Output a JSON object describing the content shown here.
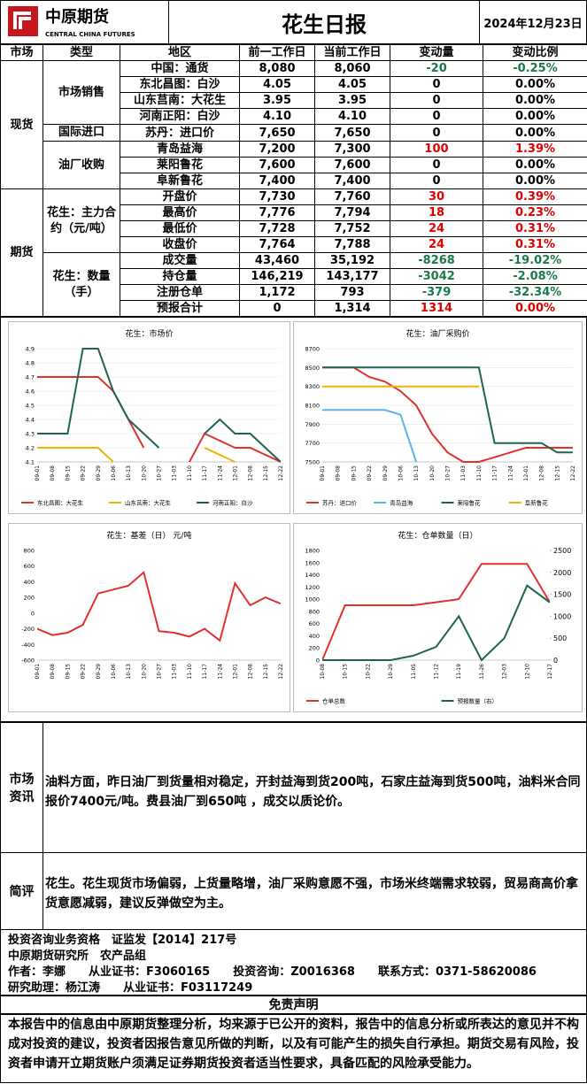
{
  "header": {
    "logo_cn": "中原期货",
    "logo_en": "CENTRAL CHINA FUTURES",
    "title": "花生日报",
    "date": "2024年12月23日"
  },
  "table": {
    "columns": [
      "市场",
      "类型",
      "地区",
      "前一工作日",
      "当前工作日",
      "变动量",
      "变动比例"
    ],
    "markets": [
      {
        "name": "现货",
        "types": [
          {
            "name": "市场销售",
            "rows": [
              [
                "中国：通货",
                "8,080",
                "8,060",
                "-20",
                "-0.25%"
              ],
              [
                "东北昌图：白沙",
                "4.05",
                "4.05",
                "0",
                "0.00%"
              ],
              [
                "山东莒南：大花生",
                "3.95",
                "3.95",
                "0",
                "0.00%"
              ],
              [
                "河南正阳：白沙",
                "4.10",
                "4.10",
                "0",
                "0.00%"
              ]
            ]
          },
          {
            "name": "国际进口",
            "rows": [
              [
                "苏丹：进口价",
                "7,650",
                "7,650",
                "0",
                "0.00%"
              ]
            ]
          },
          {
            "name": "油厂收购",
            "rows": [
              [
                "青岛益海",
                "7,200",
                "7,300",
                "100",
                "1.39%"
              ],
              [
                "莱阳鲁花",
                "7,600",
                "7,600",
                "0",
                "0.00%"
              ],
              [
                "阜新鲁花",
                "7,400",
                "7,400",
                "0",
                "0.00%"
              ]
            ]
          }
        ]
      },
      {
        "name": "期货",
        "types": [
          {
            "name": "花生：主力合约（元/吨）",
            "rows": [
              [
                "开盘价",
                "7,730",
                "7,760",
                "30",
                "0.39%"
              ],
              [
                "最高价",
                "7,776",
                "7,794",
                "18",
                "0.23%"
              ],
              [
                "最低价",
                "7,728",
                "7,752",
                "24",
                "0.31%"
              ],
              [
                "收盘价",
                "7,764",
                "7,788",
                "24",
                "0.31%"
              ]
            ]
          },
          {
            "name": "花生：数量（手）",
            "rows": [
              [
                "成交量",
                "43,460",
                "35,192",
                "-8268",
                "-19.02%"
              ],
              [
                "持仓量",
                "146,219",
                "143,177",
                "-3042",
                "-2.08%"
              ],
              [
                "注册仓单",
                "1,172",
                "793",
                "-379",
                "-32.34%"
              ],
              [
                "预报合计",
                "0",
                "1,314",
                "1314",
                "0.00%"
              ]
            ]
          }
        ]
      }
    ]
  },
  "charts": [
    {
      "type": "line",
      "title": "花生：市场价",
      "grid": true,
      "categories": [
        "09-01",
        "09-08",
        "09-15",
        "09-22",
        "09-29",
        "10-06",
        "10-13",
        "10-20",
        "10-27",
        "11-03",
        "11-10",
        "11-17",
        "11-24",
        "12-01",
        "12-08",
        "12-15",
        "12-22"
      ],
      "ylim": [
        4.1,
        4.9
      ],
      "yticks": [
        4.1,
        4.2,
        4.3,
        4.4,
        4.5,
        4.6,
        4.7,
        4.8,
        4.9
      ],
      "series": [
        {
          "name": "东北昌图：大花生",
          "color": "#e03030",
          "values": [
            4.7,
            4.7,
            4.7,
            4.7,
            4.7,
            4.6,
            4.4,
            4.2,
            null,
            null,
            4.1,
            4.3,
            4.25,
            4.2,
            4.2,
            4.15,
            4.1
          ]
        },
        {
          "name": "山东莒南：大花生",
          "color": "#f0b400",
          "values": [
            4.2,
            4.2,
            4.2,
            4.2,
            4.2,
            4.1,
            null,
            null,
            null,
            null,
            null,
            4.2,
            4.15,
            4.1,
            null,
            null,
            null
          ]
        },
        {
          "name": "河南正阳：白沙",
          "color": "#1e6450",
          "values": [
            4.3,
            4.3,
            4.3,
            4.9,
            4.9,
            4.6,
            4.4,
            4.3,
            4.2,
            null,
            null,
            4.3,
            4.4,
            4.3,
            4.3,
            4.2,
            4.1
          ]
        }
      ]
    },
    {
      "type": "line",
      "title": "花生：油厂采购价",
      "grid": true,
      "categories": [
        "09-01",
        "09-08",
        "09-15",
        "09-22",
        "09-29",
        "10-06",
        "10-13",
        "10-20",
        "10-27",
        "11-03",
        "11-10",
        "11-17",
        "11-24",
        "12-01",
        "12-08",
        "12-15",
        "12-22"
      ],
      "ylim": [
        7500,
        8700
      ],
      "yticks": [
        7500,
        7700,
        7900,
        8100,
        8300,
        8500,
        8700
      ],
      "series": [
        {
          "name": "苏丹：进口价",
          "color": "#e03030",
          "values": [
            8500,
            8500,
            8500,
            8400,
            8350,
            8250,
            8100,
            7800,
            7600,
            7500,
            7500,
            7550,
            7600,
            7650,
            7650,
            7650,
            7650
          ]
        },
        {
          "name": "青岛益海",
          "color": "#5ab4e6",
          "values": [
            8050,
            8050,
            8050,
            8050,
            8050,
            8000,
            7500,
            null,
            null,
            null,
            null,
            null,
            null,
            null,
            null,
            null,
            null
          ]
        },
        {
          "name": "莱阳鲁花",
          "color": "#1e6450",
          "values": [
            8500,
            8500,
            8500,
            8500,
            8500,
            8500,
            8500,
            8500,
            8500,
            8500,
            8500,
            7700,
            7700,
            7700,
            7700,
            7600,
            7600
          ]
        },
        {
          "name": "阜新鲁花",
          "color": "#f0b400",
          "values": [
            8300,
            8300,
            8300,
            8300,
            8300,
            8300,
            8300,
            8300,
            8300,
            8300,
            8300,
            null,
            null,
            null,
            null,
            null,
            null
          ]
        }
      ]
    },
    {
      "type": "line",
      "title": "花生：基差（日） 元/吨",
      "grid": false,
      "categories": [
        "09-01",
        "09-08",
        "09-15",
        "09-22",
        "09-29",
        "10-06",
        "10-13",
        "10-20",
        "10-27",
        "11-03",
        "11-10",
        "11-17",
        "11-24",
        "12-01",
        "12-08",
        "12-15",
        "12-22"
      ],
      "ylim": [
        -600,
        800
      ],
      "yticks": [
        -600,
        -400,
        -200,
        0,
        200,
        400,
        600,
        800
      ],
      "series": [
        {
          "color": "#e03030",
          "values": [
            -200,
            -280,
            -250,
            -150,
            250,
            300,
            350,
            520,
            -230,
            -250,
            -300,
            -200,
            -350,
            380,
            100,
            200,
            120
          ]
        }
      ]
    },
    {
      "type": "line",
      "title": "花生：仓单数量（日）",
      "grid": false,
      "categories": [
        "10-08",
        "10-15",
        "10-22",
        "10-29",
        "11-05",
        "11-12",
        "11-19",
        "11-26",
        "12-03",
        "12-10",
        "12-17"
      ],
      "ylim": [
        0,
        1800
      ],
      "yticks": [
        0,
        200,
        400,
        600,
        800,
        1000,
        1200,
        1400,
        1600,
        1800
      ],
      "y2lim": [
        0,
        2500
      ],
      "y2ticks": [
        0,
        500,
        1000,
        1500,
        2000,
        2500
      ],
      "series": [
        {
          "name": "仓单总数",
          "color": "#e03030",
          "values": [
            0,
            900,
            900,
            900,
            900,
            950,
            1000,
            1580,
            1580,
            1580,
            950
          ]
        },
        {
          "name": "预报数量（右）",
          "color": "#1e6450",
          "axis": "y2",
          "values": [
            0,
            0,
            0,
            0,
            100,
            300,
            1000,
            0,
            500,
            1700,
            1314
          ]
        }
      ]
    }
  ],
  "market_info": {
    "label": "市场资讯",
    "text": "油料方面，昨日油厂到货量相对稳定，开封益海到货200吨，石家庄益海到货500吨，油料米合同报价7400元/吨。费县油厂到650吨 ，成交以质论价。"
  },
  "comment": {
    "label": "简评",
    "text": "花生。花生现货市场偏弱，上货量略增，油厂采购意愿不强，市场米终端需求较弱，贸易商高价拿货意愿减弱，建议反弹做空为主。"
  },
  "footer": {
    "lines": [
      [
        "投资咨询业务资格　证监发【2014】217号"
      ],
      [
        "中原期货研究所　农产品组"
      ],
      [
        "作者：李娜",
        "从业证书：F3060165",
        "投资咨询：Z0016368",
        "联系方式：0371-58620086"
      ],
      [
        "研究助理：杨江涛",
        "从业证书：F03117249"
      ]
    ]
  },
  "disclaimer": {
    "title": "免责声明",
    "text": "本报告中的信息由中原期货整理分析，均来源于已公开的资料，报告中的信息分析或所表达的意见并不构成对投资的建议，投资者因报告意见所做的判断，以及有可能产生的损失自行承担。期货交易有风险，投资者申请开立期货账户须满足证券期货投资者适当性要求，具备匹配的风险承受能力。"
  }
}
